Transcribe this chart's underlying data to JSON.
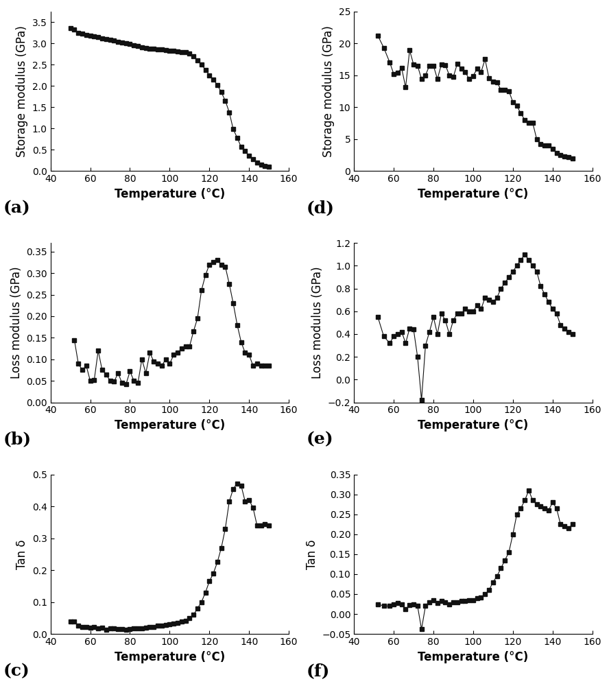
{
  "panel_a": {
    "label": "(a)",
    "xlabel": "Temperature (°C)",
    "ylabel": "Storage modulus (GPa)",
    "xlim": [
      40,
      160
    ],
    "ylim": [
      0,
      3.75
    ],
    "yticks": [
      0.0,
      0.5,
      1.0,
      1.5,
      2.0,
      2.5,
      3.0,
      3.5
    ],
    "xticks": [
      40,
      60,
      80,
      100,
      120,
      140,
      160
    ],
    "x": [
      50,
      52,
      54,
      56,
      58,
      60,
      62,
      64,
      66,
      68,
      70,
      72,
      74,
      76,
      78,
      80,
      82,
      84,
      86,
      88,
      90,
      92,
      94,
      96,
      98,
      100,
      102,
      104,
      106,
      108,
      110,
      112,
      114,
      116,
      118,
      120,
      122,
      124,
      126,
      128,
      130,
      132,
      134,
      136,
      138,
      140,
      142,
      144,
      146,
      148,
      150
    ],
    "y": [
      3.35,
      3.32,
      3.25,
      3.22,
      3.2,
      3.18,
      3.16,
      3.14,
      3.12,
      3.1,
      3.08,
      3.06,
      3.04,
      3.02,
      3.0,
      2.98,
      2.95,
      2.93,
      2.91,
      2.89,
      2.88,
      2.87,
      2.86,
      2.85,
      2.84,
      2.83,
      2.82,
      2.81,
      2.8,
      2.79,
      2.76,
      2.7,
      2.6,
      2.5,
      2.38,
      2.25,
      2.15,
      2.02,
      1.85,
      1.65,
      1.38,
      0.98,
      0.78,
      0.56,
      0.47,
      0.35,
      0.28,
      0.2,
      0.15,
      0.12,
      0.1
    ]
  },
  "panel_b": {
    "label": "(b)",
    "xlabel": "Temperature (°C)",
    "ylabel": "Loss modulus (GPa)",
    "xlim": [
      40,
      160
    ],
    "ylim": [
      0.0,
      0.37
    ],
    "yticks": [
      0.0,
      0.05,
      0.1,
      0.15,
      0.2,
      0.25,
      0.3,
      0.35
    ],
    "xticks": [
      40,
      60,
      80,
      100,
      120,
      140,
      160
    ],
    "x": [
      52,
      54,
      56,
      58,
      60,
      62,
      64,
      66,
      68,
      70,
      72,
      74,
      76,
      78,
      80,
      82,
      84,
      86,
      88,
      90,
      92,
      94,
      96,
      98,
      100,
      102,
      104,
      106,
      108,
      110,
      112,
      114,
      116,
      118,
      120,
      122,
      124,
      126,
      128,
      130,
      132,
      134,
      136,
      138,
      140,
      142,
      144,
      146,
      148,
      150
    ],
    "y": [
      0.145,
      0.09,
      0.075,
      0.085,
      0.05,
      0.052,
      0.12,
      0.075,
      0.065,
      0.05,
      0.048,
      0.068,
      0.045,
      0.042,
      0.072,
      0.05,
      0.045,
      0.1,
      0.068,
      0.115,
      0.095,
      0.09,
      0.085,
      0.1,
      0.09,
      0.11,
      0.115,
      0.125,
      0.13,
      0.13,
      0.165,
      0.195,
      0.26,
      0.295,
      0.32,
      0.325,
      0.33,
      0.32,
      0.315,
      0.275,
      0.23,
      0.18,
      0.14,
      0.115,
      0.11,
      0.085,
      0.09,
      0.085,
      0.085,
      0.085
    ]
  },
  "panel_c": {
    "label": "(c)",
    "xlabel": "Temperature (°C)",
    "ylabel": "Tan δ",
    "xlim": [
      40,
      160
    ],
    "ylim": [
      0,
      0.5
    ],
    "yticks": [
      0.0,
      0.1,
      0.2,
      0.3,
      0.4,
      0.5
    ],
    "xticks": [
      40,
      60,
      80,
      100,
      120,
      140,
      160
    ],
    "x": [
      50,
      52,
      54,
      56,
      58,
      60,
      62,
      64,
      66,
      68,
      70,
      72,
      74,
      76,
      78,
      80,
      82,
      84,
      86,
      88,
      90,
      92,
      94,
      96,
      98,
      100,
      102,
      104,
      106,
      108,
      110,
      112,
      114,
      116,
      118,
      120,
      122,
      124,
      126,
      128,
      130,
      132,
      134,
      136,
      138,
      140,
      142,
      144,
      146,
      148,
      150
    ],
    "y": [
      0.04,
      0.038,
      0.025,
      0.022,
      0.022,
      0.02,
      0.022,
      0.018,
      0.02,
      0.014,
      0.018,
      0.017,
      0.015,
      0.015,
      0.014,
      0.015,
      0.017,
      0.018,
      0.018,
      0.02,
      0.022,
      0.022,
      0.025,
      0.025,
      0.028,
      0.03,
      0.033,
      0.035,
      0.038,
      0.042,
      0.05,
      0.06,
      0.08,
      0.1,
      0.13,
      0.165,
      0.19,
      0.225,
      0.27,
      0.33,
      0.415,
      0.455,
      0.472,
      0.465,
      0.415,
      0.42,
      0.395,
      0.34,
      0.34,
      0.345,
      0.34
    ]
  },
  "panel_d": {
    "label": "(d)",
    "xlabel": "Temperature (°C)",
    "ylabel": "Storage modulus (GPa)",
    "xlim": [
      40,
      160
    ],
    "ylim": [
      0,
      25
    ],
    "yticks": [
      0,
      5,
      10,
      15,
      20,
      25
    ],
    "xticks": [
      40,
      60,
      80,
      100,
      120,
      140,
      160
    ],
    "x": [
      52,
      55,
      58,
      60,
      62,
      64,
      66,
      68,
      70,
      72,
      74,
      76,
      78,
      80,
      82,
      84,
      86,
      88,
      90,
      92,
      94,
      96,
      98,
      100,
      102,
      104,
      106,
      108,
      110,
      112,
      114,
      116,
      118,
      120,
      122,
      124,
      126,
      128,
      130,
      132,
      134,
      136,
      138,
      140,
      142,
      144,
      146,
      148,
      150
    ],
    "y": [
      21.2,
      19.3,
      17.0,
      15.2,
      15.4,
      16.1,
      13.1,
      18.9,
      16.7,
      16.5,
      14.4,
      15.0,
      16.5,
      16.5,
      14.4,
      16.7,
      16.6,
      15.0,
      14.7,
      16.8,
      16.0,
      15.5,
      14.4,
      14.9,
      16.0,
      15.5,
      17.5,
      14.5,
      14.0,
      13.9,
      12.7,
      12.7,
      12.5,
      10.8,
      10.2,
      9.0,
      8.0,
      7.5,
      7.5,
      5.0,
      4.2,
      4.0,
      4.0,
      3.5,
      2.8,
      2.5,
      2.3,
      2.2,
      2.0
    ]
  },
  "panel_e": {
    "label": "(e)",
    "xlabel": "Temperature (°C)",
    "ylabel": "Loss modulus (GPa)",
    "xlim": [
      40,
      160
    ],
    "ylim": [
      -0.2,
      1.2
    ],
    "yticks": [
      -0.2,
      0.0,
      0.2,
      0.4,
      0.6,
      0.8,
      1.0,
      1.2
    ],
    "xticks": [
      40,
      60,
      80,
      100,
      120,
      140,
      160
    ],
    "x": [
      52,
      55,
      58,
      60,
      62,
      64,
      66,
      68,
      70,
      72,
      74,
      76,
      78,
      80,
      82,
      84,
      86,
      88,
      90,
      92,
      94,
      96,
      98,
      100,
      102,
      104,
      106,
      108,
      110,
      112,
      114,
      116,
      118,
      120,
      122,
      124,
      126,
      128,
      130,
      132,
      134,
      136,
      138,
      140,
      142,
      144,
      146,
      148,
      150
    ],
    "y": [
      0.55,
      0.38,
      0.32,
      0.38,
      0.4,
      0.42,
      0.32,
      0.45,
      0.44,
      0.2,
      -0.18,
      0.3,
      0.42,
      0.55,
      0.4,
      0.58,
      0.52,
      0.4,
      0.52,
      0.58,
      0.58,
      0.62,
      0.6,
      0.6,
      0.65,
      0.62,
      0.72,
      0.7,
      0.68,
      0.72,
      0.8,
      0.85,
      0.9,
      0.95,
      1.0,
      1.05,
      1.1,
      1.05,
      1.0,
      0.95,
      0.82,
      0.75,
      0.68,
      0.62,
      0.58,
      0.48,
      0.45,
      0.42,
      0.4
    ]
  },
  "panel_f": {
    "label": "(f)",
    "xlabel": "Temperature (°C)",
    "ylabel": "Tan δ",
    "xlim": [
      40,
      160
    ],
    "ylim": [
      -0.05,
      0.35
    ],
    "yticks": [
      -0.05,
      0.0,
      0.05,
      0.1,
      0.15,
      0.2,
      0.25,
      0.3,
      0.35
    ],
    "xticks": [
      40,
      60,
      80,
      100,
      120,
      140,
      160
    ],
    "x": [
      52,
      55,
      58,
      60,
      62,
      64,
      66,
      68,
      70,
      72,
      74,
      76,
      78,
      80,
      82,
      84,
      86,
      88,
      90,
      92,
      94,
      96,
      98,
      100,
      102,
      104,
      106,
      108,
      110,
      112,
      114,
      116,
      118,
      120,
      122,
      124,
      126,
      128,
      130,
      132,
      134,
      136,
      138,
      140,
      142,
      144,
      146,
      148,
      150
    ],
    "y": [
      0.025,
      0.02,
      0.02,
      0.025,
      0.028,
      0.025,
      0.012,
      0.022,
      0.025,
      0.02,
      -0.038,
      0.02,
      0.03,
      0.035,
      0.028,
      0.032,
      0.03,
      0.025,
      0.03,
      0.03,
      0.032,
      0.032,
      0.035,
      0.035,
      0.04,
      0.042,
      0.05,
      0.06,
      0.08,
      0.095,
      0.115,
      0.135,
      0.155,
      0.2,
      0.25,
      0.265,
      0.285,
      0.31,
      0.285,
      0.275,
      0.27,
      0.265,
      0.26,
      0.28,
      0.265,
      0.225,
      0.22,
      0.215,
      0.225
    ]
  },
  "marker": "s",
  "marker_size": 4,
  "line_color": "#111111",
  "line_width": 0.8,
  "label_fontsize": 12,
  "tick_fontsize": 10,
  "panel_label_fontsize": 18
}
